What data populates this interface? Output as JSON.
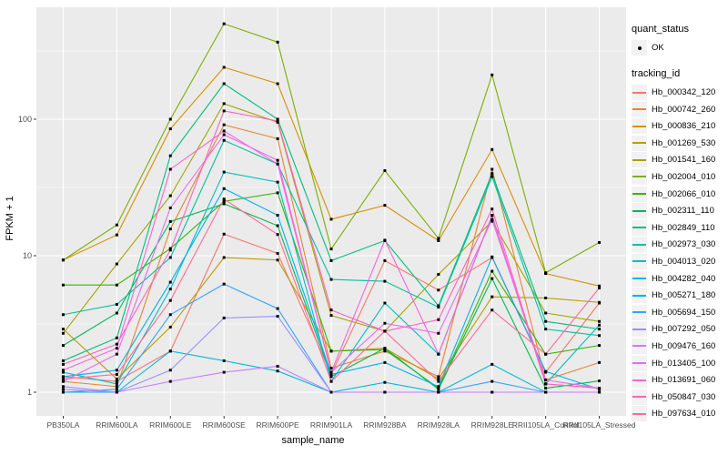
{
  "figure": {
    "background": "#FFFFFF",
    "panel_background": "#EBEBEB",
    "grid_color": "#FFFFFF",
    "axis_text_color": "#4D4D4D",
    "point_color": "#000000"
  },
  "axes": {
    "x_title": "sample_name",
    "y_title": "FPKM + 1",
    "y_tick_labels": [
      "100",
      "10",
      "1"
    ],
    "y_tick_values": [
      100,
      10,
      1
    ]
  },
  "legend": {
    "quant_status_title": "quant_status",
    "quant_status_item": "OK",
    "tracking_title": "tracking_id"
  },
  "chart_data": {
    "type": "line",
    "title": "",
    "xlabel": "sample_name",
    "ylabel": "FPKM + 1",
    "yscale": "log10",
    "ylim": [
      1,
      660
    ],
    "grid": "major-and-minor-white-on-gray",
    "legend_position": "right",
    "marker": "black-point-quant-status-OK",
    "categories": [
      "PB350LA",
      "RRIM600LA",
      "RRIM600LE",
      "RRIM600SE",
      "RRIM600PE",
      "RRIM901LA",
      "RRIM928BA",
      "RRIM928LA",
      "RRIM928LE",
      "RRII105LA_Control",
      "RRII105LA_Stressed"
    ],
    "series": [
      {
        "name": "Hb_000342_120",
        "color": "#F8766D",
        "values": [
          1.3,
          1.2,
          2.0,
          14.4,
          10.4,
          1.35,
          9.2,
          5.6,
          9.7,
          1.4,
          4.5
        ]
      },
      {
        "name": "Hb_000742_260",
        "color": "#EA8331",
        "values": [
          1.2,
          1.1,
          15.7,
          91,
          72,
          1.5,
          2.0,
          1.3,
          43,
          1.23,
          1.65
        ]
      },
      {
        "name": "Hb_000836_210",
        "color": "#D89000",
        "values": [
          9.3,
          14.2,
          85,
          240,
          182,
          18.5,
          23.4,
          12.9,
          60,
          7.4,
          6.0
        ]
      },
      {
        "name": "Hb_001269_530",
        "color": "#C09B00",
        "values": [
          2.9,
          1.25,
          3.0,
          9.7,
          9.3,
          2.0,
          2.1,
          1.25,
          5.0,
          4.9,
          4.55
        ]
      },
      {
        "name": "Hb_001541_160",
        "color": "#A3A500",
        "values": [
          2.7,
          8.7,
          27.5,
          130,
          95,
          3.65,
          2.8,
          7.3,
          17.9,
          3.8,
          3.3
        ]
      },
      {
        "name": "Hb_002004_010",
        "color": "#7CAE00",
        "values": [
          9.3,
          16.8,
          100,
          500,
          367,
          11.2,
          42,
          13.4,
          211,
          7.5,
          12.5
        ]
      },
      {
        "name": "Hb_002066_010",
        "color": "#39B600",
        "values": [
          6.1,
          6.1,
          11.3,
          25,
          28.9,
          2.0,
          2.05,
          1.07,
          7.7,
          1.9,
          2.2
        ]
      },
      {
        "name": "Hb_002311_110",
        "color": "#00BB4E",
        "values": [
          2.2,
          3.8,
          17.8,
          24,
          16.6,
          1.3,
          2.1,
          1.05,
          6.8,
          1.07,
          1.21
        ]
      },
      {
        "name": "Hb_002849_110",
        "color": "#00BF7D",
        "values": [
          1.7,
          2.5,
          54,
          182,
          100,
          9.2,
          12.9,
          4.3,
          40,
          3.3,
          2.9
        ]
      },
      {
        "name": "Hb_002973_030",
        "color": "#00C1A3",
        "values": [
          3.7,
          4.4,
          9.7,
          70,
          47,
          6.7,
          6.5,
          4.2,
          38,
          2.9,
          2.6
        ]
      },
      {
        "name": "Hb_004013_020",
        "color": "#00BFC4",
        "values": [
          1.4,
          1.15,
          5.7,
          41,
          34.6,
          1.2,
          4.5,
          1.9,
          19.7,
          1.15,
          3.1
        ]
      },
      {
        "name": "Hb_004282_040",
        "color": "#00BAE0",
        "values": [
          1.0,
          1.0,
          2.0,
          1.7,
          1.43,
          1.0,
          1.18,
          1.0,
          1.6,
          1.0,
          1.0
        ]
      },
      {
        "name": "Hb_005271_180",
        "color": "#00B0F6",
        "values": [
          1.3,
          1.45,
          6.4,
          31,
          19.8,
          1.35,
          1.65,
          1.1,
          9.8,
          1.42,
          1.05
        ]
      },
      {
        "name": "Hb_005694_150",
        "color": "#35A2FF",
        "values": [
          1.0,
          1.05,
          3.7,
          6.2,
          4.1,
          1.0,
          1.0,
          1.0,
          1.2,
          1.0,
          1.0
        ]
      },
      {
        "name": "Hb_007292_050",
        "color": "#9590FF",
        "values": [
          1.1,
          1.0,
          1.45,
          3.5,
          3.6,
          1.0,
          1.0,
          1.0,
          1.0,
          1.0,
          1.0
        ]
      },
      {
        "name": "Hb_009476_160",
        "color": "#C77CFF",
        "values": [
          1.05,
          1.0,
          1.2,
          1.4,
          1.55,
          1.0,
          1.0,
          1.0,
          1.0,
          1.0,
          1.0
        ]
      },
      {
        "name": "Hb_013405_100",
        "color": "#E76BF3",
        "values": [
          1.2,
          1.9,
          22.4,
          77,
          50,
          1.4,
          3.2,
          2.7,
          18.4,
          1.23,
          1.07
        ]
      },
      {
        "name": "Hb_013691_060",
        "color": "#FA62DB",
        "values": [
          1.45,
          2.1,
          43,
          82,
          47,
          1.4,
          13.0,
          1.9,
          19.8,
          1.15,
          1.07
        ]
      },
      {
        "name": "Hb_050847_030",
        "color": "#FF62BC",
        "values": [
          1.6,
          2.25,
          11.0,
          115,
          97,
          4.0,
          2.8,
          3.4,
          22,
          1.15,
          1.07
        ]
      },
      {
        "name": "Hb_097634_010",
        "color": "#FF6A98",
        "values": [
          1.25,
          1.35,
          4.7,
          26,
          14.3,
          1.2,
          2.8,
          1.2,
          4.0,
          1.9,
          5.8
        ]
      }
    ]
  }
}
